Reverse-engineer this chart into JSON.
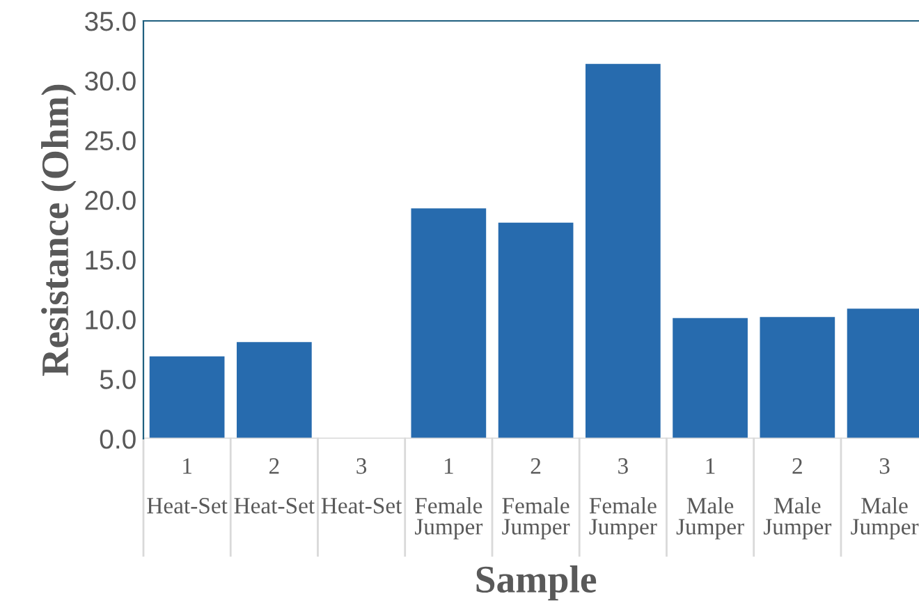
{
  "chart_data": {
    "type": "bar",
    "xlabel": "Sample",
    "ylabel": "Resistance (Ohm)",
    "categories": [
      "1\nHeat-Set",
      "2\nHeat-Set",
      "3\nHeat-Set",
      "1\nFemale Jumper",
      "2\nFemale Jumper",
      "3\nFemale Jumper",
      "1\nMale Jumper",
      "2\nMale Jumper",
      "3\nMale Jumper"
    ],
    "values": [
      6.9,
      8.1,
      null,
      19.3,
      18.1,
      31.4,
      10.1,
      10.2,
      10.9
    ],
    "color": "#276bae",
    "ylim": [
      0,
      35
    ],
    "yticks": [
      {
        "value": 0,
        "label": "0.0"
      },
      {
        "value": 5,
        "label": "5.0"
      },
      {
        "value": 10,
        "label": "10.0"
      },
      {
        "value": 15,
        "label": "15.0"
      },
      {
        "value": 20,
        "label": "20.0"
      },
      {
        "value": 25,
        "label": "25.0"
      },
      {
        "value": 30,
        "label": "30.0"
      },
      {
        "value": 35,
        "label": "35.0"
      }
    ],
    "grid": false
  }
}
